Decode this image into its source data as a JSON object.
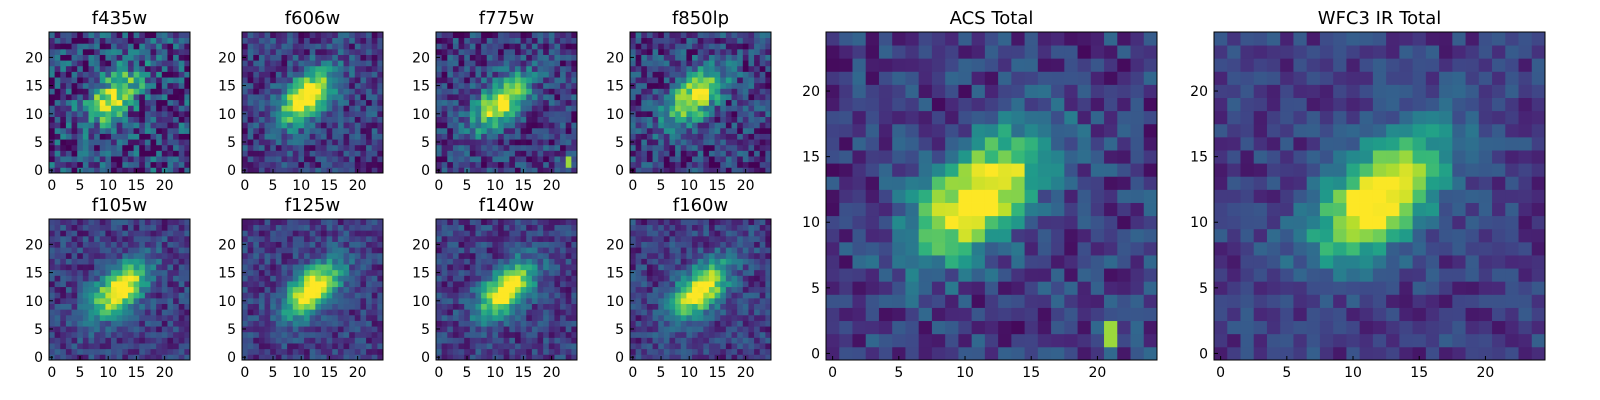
{
  "figure": {
    "background": "#ffffff",
    "colormap": "viridis"
  },
  "chart_data": [
    {
      "type": "heatmap",
      "title": "f435w",
      "x_ticks": [
        "0",
        "5",
        "10",
        "15",
        "20"
      ],
      "y_ticks": [
        "0",
        "5",
        "10",
        "15",
        "20"
      ],
      "xlim": [
        0,
        24
      ],
      "ylim": [
        0,
        24
      ],
      "grid": false,
      "center": [
        11,
        13
      ],
      "noise": 0.3,
      "peak": 0.75,
      "seed": 1
    },
    {
      "type": "heatmap",
      "title": "f606w",
      "x_ticks": [
        "0",
        "5",
        "10",
        "15",
        "20"
      ],
      "y_ticks": [
        "0",
        "5",
        "10",
        "15",
        "20"
      ],
      "xlim": [
        0,
        24
      ],
      "ylim": [
        0,
        24
      ],
      "grid": false,
      "center": [
        11,
        13
      ],
      "noise": 0.18,
      "peak": 0.95,
      "seed": 2
    },
    {
      "type": "heatmap",
      "title": "f775w",
      "x_ticks": [
        "0",
        "5",
        "10",
        "15",
        "20"
      ],
      "y_ticks": [
        "0",
        "5",
        "10",
        "15",
        "20"
      ],
      "xlim": [
        0,
        24
      ],
      "ylim": [
        0,
        24
      ],
      "grid": false,
      "center": [
        11,
        12
      ],
      "noise": 0.2,
      "peak": 0.85,
      "seed": 3,
      "hotspot": [
        23,
        1
      ]
    },
    {
      "type": "heatmap",
      "title": "f850lp",
      "x_ticks": [
        "0",
        "5",
        "10",
        "15",
        "20"
      ],
      "y_ticks": [
        "0",
        "5",
        "10",
        "15",
        "20"
      ],
      "xlim": [
        0,
        24
      ],
      "ylim": [
        0,
        24
      ],
      "grid": false,
      "center": [
        11,
        13
      ],
      "noise": 0.22,
      "peak": 0.85,
      "seed": 4
    },
    {
      "type": "heatmap",
      "title": "f105w",
      "x_ticks": [
        "0",
        "5",
        "10",
        "15",
        "20"
      ],
      "y_ticks": [
        "0",
        "5",
        "10",
        "15",
        "20"
      ],
      "xlim": [
        0,
        24
      ],
      "ylim": [
        0,
        24
      ],
      "grid": false,
      "center": [
        12,
        12
      ],
      "noise": 0.15,
      "peak": 0.95,
      "seed": 5
    },
    {
      "type": "heatmap",
      "title": "f125w",
      "x_ticks": [
        "0",
        "5",
        "10",
        "15",
        "20"
      ],
      "y_ticks": [
        "0",
        "5",
        "10",
        "15",
        "20"
      ],
      "xlim": [
        0,
        24
      ],
      "ylim": [
        0,
        24
      ],
      "grid": false,
      "center": [
        12,
        12
      ],
      "noise": 0.14,
      "peak": 0.95,
      "seed": 6
    },
    {
      "type": "heatmap",
      "title": "f140w",
      "x_ticks": [
        "0",
        "5",
        "10",
        "15",
        "20"
      ],
      "y_ticks": [
        "0",
        "5",
        "10",
        "15",
        "20"
      ],
      "xlim": [
        0,
        24
      ],
      "ylim": [
        0,
        24
      ],
      "grid": false,
      "center": [
        12,
        12
      ],
      "noise": 0.15,
      "peak": 0.95,
      "seed": 7
    },
    {
      "type": "heatmap",
      "title": "f160w",
      "x_ticks": [
        "0",
        "5",
        "10",
        "15",
        "20"
      ],
      "y_ticks": [
        "0",
        "5",
        "10",
        "15",
        "20"
      ],
      "xlim": [
        0,
        24
      ],
      "ylim": [
        0,
        24
      ],
      "grid": false,
      "center": [
        12,
        12
      ],
      "noise": 0.15,
      "peak": 0.95,
      "seed": 8
    },
    {
      "type": "heatmap",
      "title": "ACS Total",
      "x_ticks": [
        "0",
        "5",
        "10",
        "15",
        "20"
      ],
      "y_ticks": [
        "0",
        "5",
        "10",
        "15",
        "20"
      ],
      "xlim": [
        0,
        24
      ],
      "ylim": [
        0,
        24
      ],
      "grid": false,
      "center": [
        11,
        12
      ],
      "noise": 0.16,
      "peak": 0.95,
      "seed": 9,
      "hotspot": [
        21,
        1
      ]
    },
    {
      "type": "heatmap",
      "title": "WFC3 IR Total",
      "x_ticks": [
        "0",
        "5",
        "10",
        "15",
        "20"
      ],
      "y_ticks": [
        "0",
        "5",
        "10",
        "15",
        "20"
      ],
      "xlim": [
        0,
        24
      ],
      "ylim": [
        0,
        24
      ],
      "grid": false,
      "center": [
        12,
        12
      ],
      "noise": 0.12,
      "peak": 0.95,
      "seed": 10
    }
  ]
}
